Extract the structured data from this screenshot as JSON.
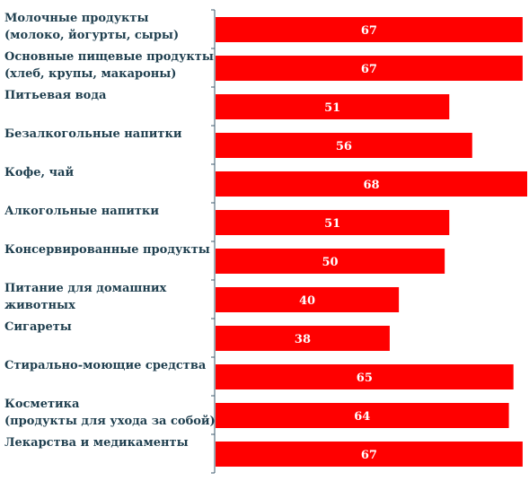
{
  "chart_data": {
    "type": "bar",
    "orientation": "horizontal",
    "categories": [
      [
        "Молочные продукты",
        "(молоко, йогурты, сыры)"
      ],
      [
        "Основные пищевые продукты",
        "(хлеб, крупы, макароны)"
      ],
      [
        "Питьевая вода"
      ],
      [
        "Безалкогольные напитки"
      ],
      [
        "Кофе, чай"
      ],
      [
        "Алкогольные напитки"
      ],
      [
        "Консервированные продукты"
      ],
      [
        "Питание для домашних",
        "животных"
      ],
      [
        "Сигареты"
      ],
      [
        "Стирально-моющие средства"
      ],
      [
        "Косметика",
        "(продукты для ухода за собой)"
      ],
      [
        "Лекарства и медикаменты"
      ]
    ],
    "values": [
      67,
      67,
      51,
      56,
      68,
      51,
      50,
      40,
      38,
      65,
      64,
      67
    ],
    "bar_color": "#ff0000",
    "label_color": "#1f3f4f",
    "value_label_color": "#ffffff",
    "axis_color": "#3c5a6e",
    "xlim": [
      0,
      68
    ],
    "grid": false,
    "legend": "none"
  }
}
